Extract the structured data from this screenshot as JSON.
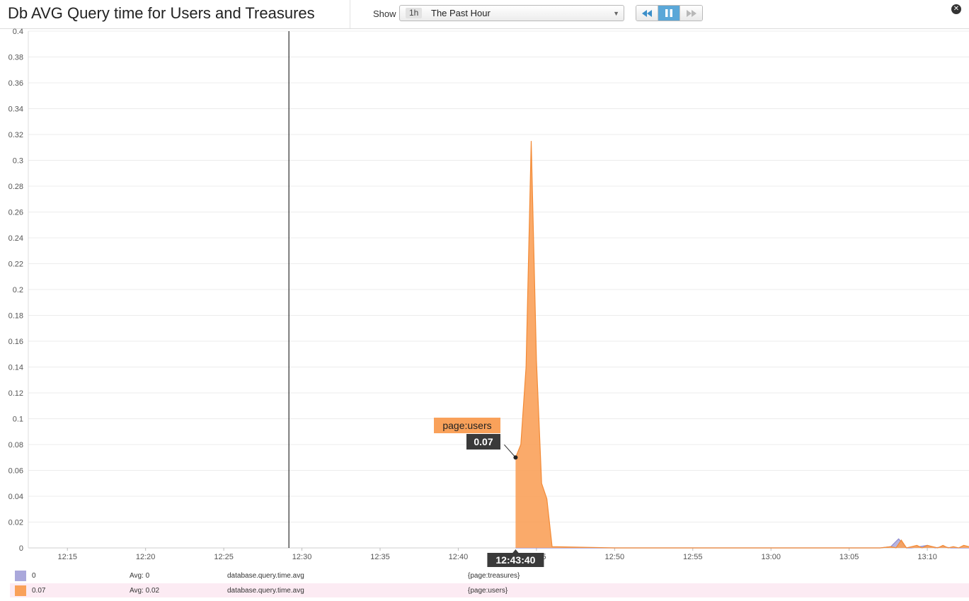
{
  "header": {
    "title": "Db AVG Query time for Users and Treasures",
    "show_label": "Show",
    "time_badge": "1h",
    "time_label": "The Past Hour"
  },
  "controls": {
    "rewind_icon": "rewind-icon",
    "pause_icon": "pause-icon",
    "forward_icon": "fast-forward-icon",
    "close_icon": "close-icon",
    "active_color": "#5aa7d8"
  },
  "chart_data": {
    "type": "area",
    "title": "Db AVG Query time for Users and Treasures",
    "xlabel": "",
    "ylabel": "",
    "x_ticks": [
      "12:15",
      "12:20",
      "12:25",
      "12:30",
      "12:35",
      "12:40",
      "12:45",
      "12:50",
      "12:55",
      "13:00",
      "13:05",
      "13:10"
    ],
    "x_range": [
      "12:12:30",
      "13:12:40"
    ],
    "y_ticks": [
      0,
      0.02,
      0.04,
      0.06,
      0.08,
      0.1,
      0.12,
      0.14,
      0.16,
      0.18,
      0.2,
      0.22,
      0.24,
      0.26,
      0.28,
      0.3,
      0.32,
      0.34,
      0.36,
      0.38,
      0.4
    ],
    "ylim": [
      0,
      0.4
    ],
    "grid": true,
    "cursor_time": "12:29:10",
    "series": [
      {
        "name": "{page:treasures}",
        "color": "#aaa8db",
        "x": [
          "12:43:40",
          "12:45:40",
          "13:07:00",
          "13:07:40",
          "13:08:10",
          "13:08:40",
          "13:09:00",
          "13:09:30",
          "13:10:00",
          "13:10:30",
          "13:11:00",
          "13:11:30",
          "13:12:00",
          "13:12:40"
        ],
        "y": [
          0,
          0,
          0,
          0.001,
          0.007,
          0,
          0,
          0.001,
          0.002,
          0,
          0.001,
          0,
          0,
          0
        ]
      },
      {
        "name": "{page:users}",
        "color": "#f9a15a",
        "x": [
          "12:43:40",
          "12:44:00",
          "12:44:20",
          "12:44:40",
          "12:45:00",
          "12:45:20",
          "12:45:40",
          "12:46:00",
          "12:50:00",
          "12:55:00",
          "13:00:00",
          "13:05:00",
          "13:07:00",
          "13:07:40",
          "13:08:00",
          "13:08:20",
          "13:08:40",
          "13:09:00",
          "13:09:20",
          "13:09:40",
          "13:10:00",
          "13:10:20",
          "13:10:40",
          "13:11:00",
          "13:11:20",
          "13:11:40",
          "13:12:00",
          "13:12:20",
          "13:12:40"
        ],
        "y": [
          0.07,
          0.08,
          0.14,
          0.315,
          0.145,
          0.05,
          0.038,
          0.001,
          0,
          0,
          0,
          0,
          0,
          0.001,
          0,
          0.006,
          0,
          0.001,
          0.002,
          0,
          0.002,
          0.001,
          0,
          0.002,
          0,
          0.001,
          0,
          0.002,
          0.001
        ]
      }
    ],
    "tooltip": {
      "series": "page:users",
      "value": "0.07",
      "time": "12:43:40"
    }
  },
  "legend": [
    {
      "value": "0",
      "avg": "Avg: 0",
      "metric": "database.query.time.avg",
      "tags": "{page:treasures}",
      "color": "#aaa8db"
    },
    {
      "value": "0.07",
      "avg": "Avg: 0.02",
      "metric": "database.query.time.avg",
      "tags": "{page:users}",
      "color": "#f9a15a"
    }
  ]
}
